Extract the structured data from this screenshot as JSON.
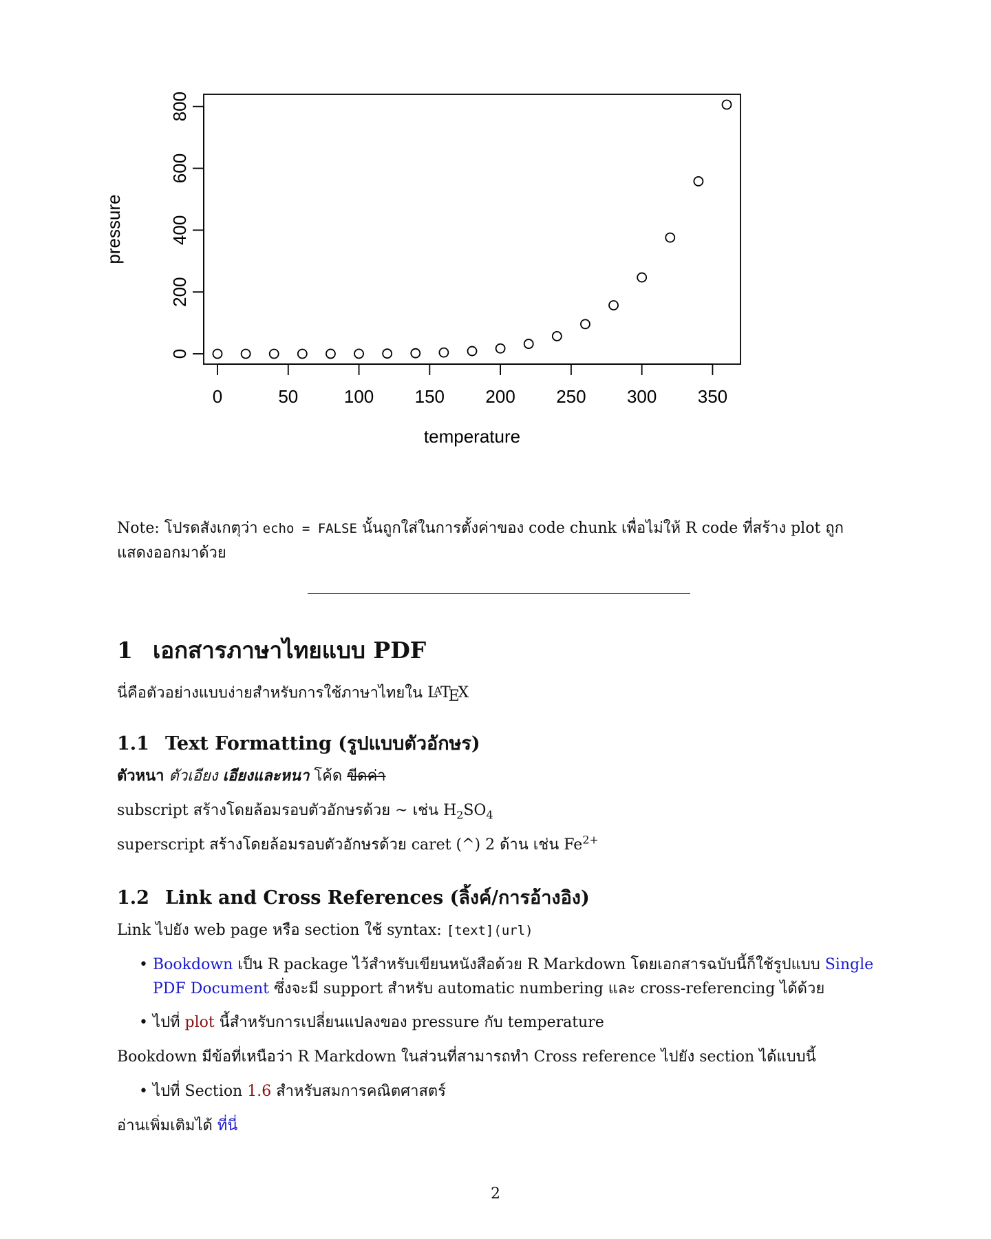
{
  "chart_data": {
    "type": "scatter",
    "xlabel": "temperature",
    "ylabel": "pressure",
    "xlim": [
      0,
      360
    ],
    "ylim": [
      0,
      806
    ],
    "x_ticks": [
      0,
      50,
      100,
      150,
      200,
      250,
      300,
      350
    ],
    "y_ticks": [
      0,
      200,
      400,
      600,
      800
    ],
    "x": [
      0,
      20,
      40,
      60,
      80,
      100,
      120,
      140,
      160,
      180,
      200,
      220,
      240,
      260,
      280,
      300,
      320,
      340,
      360
    ],
    "y": [
      0.0002,
      0.0012,
      0.006,
      0.03,
      0.09,
      0.27,
      0.75,
      1.85,
      4.2,
      8.8,
      17.3,
      32.1,
      57,
      96,
      157,
      247,
      376,
      558,
      806
    ]
  },
  "note": {
    "prefix": "Note: โปรดสังเกตุว่า ",
    "code": "echo = FALSE",
    "suffix": " นั้นถูกใส่ในการตั้งค่าของ code chunk เพื่อไม่ให้ R code ที่สร้าง plot ถูกแสดงออกมาด้วย"
  },
  "section1": {
    "number": "1",
    "title": "เอกสารภาษาไทยแบบ PDF",
    "intro": "นี่คือตัวอย่างแบบง่ายสำหรับการใช้ภาษาไทยใน ",
    "latex": {
      "l": "L",
      "a": "A",
      "t": "T",
      "e": "E",
      "x": "X"
    }
  },
  "section1_1": {
    "number": "1.1",
    "title": "Text Formatting (รูปแบบตัวอักษร)",
    "bold": "ตัวหนา",
    "italic": "ตัวเอียง",
    "bold_italic": "เอียงและหนา",
    "code": "โค้ด",
    "strike": "ขีดค่า",
    "subscript_text": "subscript สร้างโดยล้อมรอบตัวอักษรด้วย ~ เช่น H",
    "sub_2": "2",
    "so": "SO",
    "sub_4": "4",
    "superscript_text": "superscript สร้างโดยล้อมรอบตัวอักษรด้วย caret (^) 2 ด้าน เช่น Fe",
    "sup": "2+"
  },
  "section1_2": {
    "number": "1.2",
    "title": "Link and Cross References (ลิ้งค์/การอ้างอิง)",
    "link_intro": "Link ไปยัง web page หรือ section ใช้ syntax: ",
    "link_syntax": "[text](url)",
    "bullet1": {
      "link1": "Bookdown",
      "text1": " เป็น R package ไว้สำหรับเขียนหนังสือด้วย R Markdown โดยเอกสารฉบับนี้ก็ใช้รูปแบบ ",
      "link2": "Single PDF Document",
      "text2": " ซึ่งจะมี support สำหรับ automatic numbering และ cross-referencing ได้ด้วย"
    },
    "bullet2": {
      "pre": "ไปที่ ",
      "link": "plot",
      "post": " นี้สำหรับการเปลี่ยนแปลงของ pressure กับ temperature"
    },
    "bookdown_para": "Bookdown มีข้อที่เหนือว่า R Markdown ในส่วนที่สามารถทำ Cross reference ไปยัง section ได้แบบนี้",
    "bullet3": {
      "pre": "ไปที่ Section ",
      "link": "1.6",
      "post": " สำหรับสมการคณิตศาสตร์"
    },
    "more_pre": "อ่านเพิ่มเติมได้ ",
    "more_link": "ที่นี่"
  },
  "page_number": "2"
}
